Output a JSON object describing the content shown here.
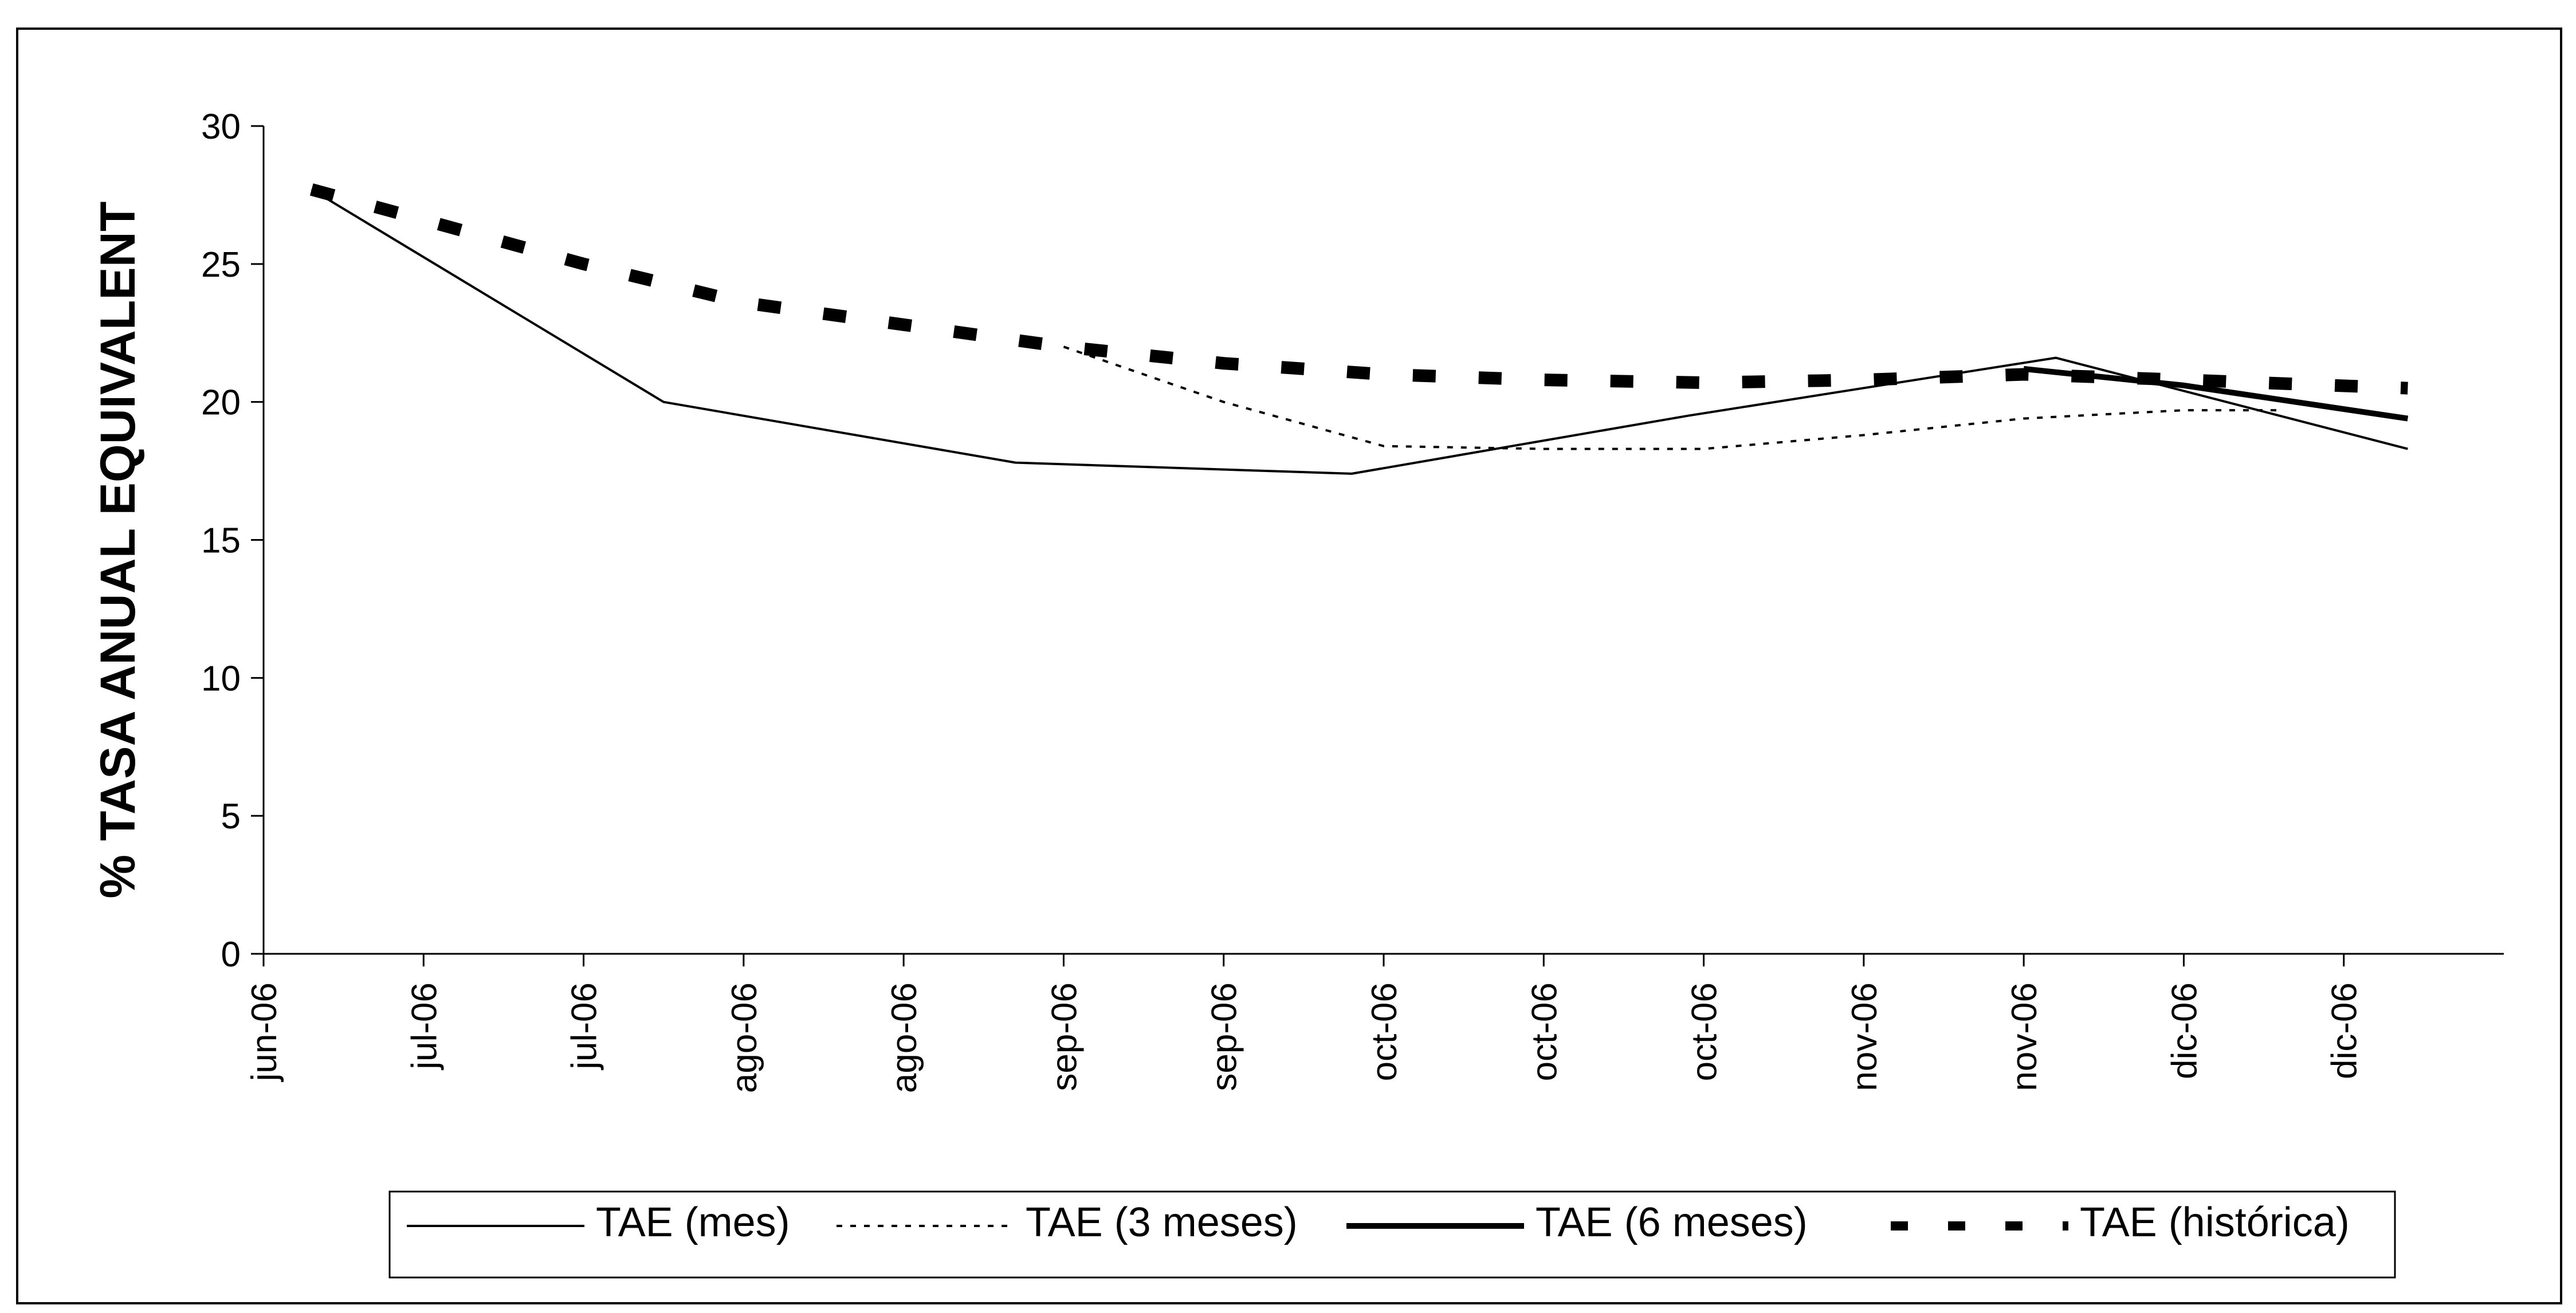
{
  "chart_data": {
    "type": "line",
    "title": "",
    "xlabel": "",
    "ylabel": "% TASA ANUAL EQUIVALENT",
    "ylim": [
      0,
      30
    ],
    "yticks": [
      0,
      5,
      10,
      15,
      20,
      25,
      30
    ],
    "x_tick_labels": [
      "jun-06",
      "jul-06",
      "jul-06",
      "ago-06",
      "ago-06",
      "sep-06",
      "sep-06",
      "oct-06",
      "oct-06",
      "oct-06",
      "nov-06",
      "nov-06",
      "dic-06",
      "dic-06"
    ],
    "grid": false,
    "legend_position": "bottom",
    "series": [
      {
        "name": "TAE (mes)",
        "style": "thin-solid",
        "color": "#000000",
        "points": [
          {
            "x": 0.3,
            "y": 27.7
          },
          {
            "x": 2.5,
            "y": 20.0
          },
          {
            "x": 4.7,
            "y": 17.8
          },
          {
            "x": 6.8,
            "y": 17.4
          },
          {
            "x": 8.9,
            "y": 19.5
          },
          {
            "x": 11.2,
            "y": 21.6
          },
          {
            "x": 13.4,
            "y": 18.3
          }
        ]
      },
      {
        "name": "TAE (3 meses)",
        "style": "dotted",
        "color": "#000000",
        "points": [
          {
            "x": 5.0,
            "y": 22.0
          },
          {
            "x": 6.0,
            "y": 20.0
          },
          {
            "x": 7.0,
            "y": 18.4
          },
          {
            "x": 8.0,
            "y": 18.3
          },
          {
            "x": 9.0,
            "y": 18.3
          },
          {
            "x": 10.0,
            "y": 18.8
          },
          {
            "x": 11.0,
            "y": 19.4
          },
          {
            "x": 12.0,
            "y": 19.7
          },
          {
            "x": 12.6,
            "y": 19.7
          }
        ]
      },
      {
        "name": "TAE (6 meses)",
        "style": "thick-solid",
        "color": "#000000",
        "points": [
          {
            "x": 11.0,
            "y": 21.2
          },
          {
            "x": 12.0,
            "y": 20.6
          },
          {
            "x": 13.4,
            "y": 19.4
          }
        ]
      },
      {
        "name": "TAE (histórica)",
        "style": "thick-dashed",
        "color": "#000000",
        "points": [
          {
            "x": 0.3,
            "y": 27.7
          },
          {
            "x": 1.0,
            "y": 26.6
          },
          {
            "x": 2.0,
            "y": 25.0
          },
          {
            "x": 3.0,
            "y": 23.6
          },
          {
            "x": 4.0,
            "y": 22.8
          },
          {
            "x": 5.0,
            "y": 22.0
          },
          {
            "x": 6.0,
            "y": 21.4
          },
          {
            "x": 7.0,
            "y": 21.0
          },
          {
            "x": 8.0,
            "y": 20.8
          },
          {
            "x": 9.0,
            "y": 20.7
          },
          {
            "x": 10.0,
            "y": 20.8
          },
          {
            "x": 11.0,
            "y": 21.0
          },
          {
            "x": 12.0,
            "y": 20.8
          },
          {
            "x": 13.4,
            "y": 20.5
          }
        ]
      }
    ]
  },
  "legend": {
    "items": [
      "TAE (mes)",
      "TAE (3 meses)",
      "TAE (6 meses)",
      "TAE (histórica)"
    ]
  }
}
